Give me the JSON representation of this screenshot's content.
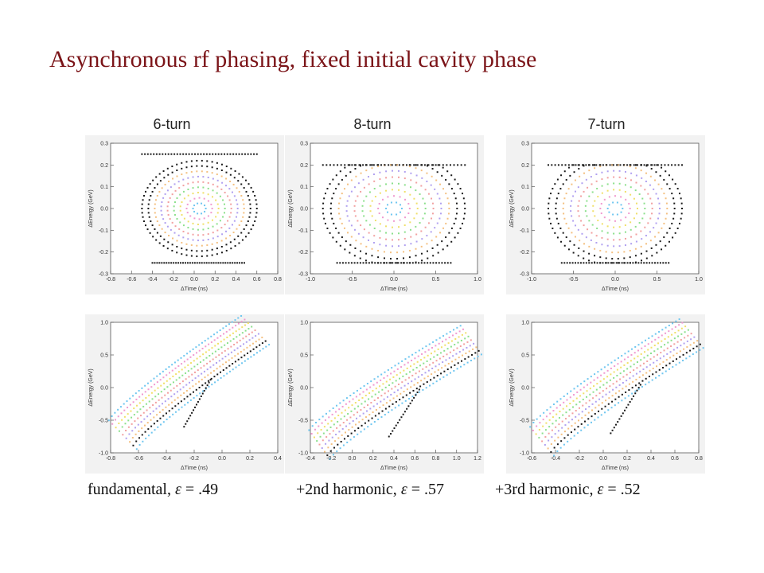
{
  "slide": {
    "title": "Asynchronous rf phasing, fixed initial cavity phase"
  },
  "columns": [
    {
      "title": "6-turn"
    },
    {
      "title": "8-turn"
    },
    {
      "title": "7-turn"
    }
  ],
  "captions": [
    {
      "prefix": "fundamental, ",
      "symbol": "ε",
      "suffix": " = .49"
    },
    {
      "prefix": "+2nd harmonic, ",
      "symbol": "ε",
      "suffix": " = .57"
    },
    {
      "prefix": "+3rd harmonic, ",
      "symbol": "ε",
      "suffix": " = .52"
    }
  ],
  "colors": {
    "title": "#7b1418",
    "rings": [
      "#1a1a1a",
      "#6ec6f0",
      "#f09ad0",
      "#f0e06a",
      "#8ce08c",
      "#f2a0a0",
      "#b0a0f0",
      "#f4c080"
    ]
  },
  "chart_data": [
    {
      "type": "scatter",
      "panel": "top-left",
      "xlabel": "ΔTime (ns)",
      "ylabel": "ΔEnergy (GeV)",
      "xlim": [
        -0.8,
        0.8
      ],
      "ylim": [
        -0.3,
        0.3
      ],
      "xticks": [
        "-0.8",
        "-0.6",
        "-0.4",
        "-0.2",
        "0.0",
        "0.2",
        "0.4",
        "0.6",
        "0.8"
      ],
      "yticks": [
        "0.3",
        "0.2",
        "0.1",
        "0.0",
        "-0.1",
        "-0.2",
        "-0.3"
      ],
      "shape": "rings",
      "center": [
        0.05,
        0.0
      ],
      "rx": 0.55,
      "ry": 0.22,
      "clip": [
        0.25,
        -0.25
      ]
    },
    {
      "type": "scatter",
      "panel": "top-middle",
      "xlabel": "ΔTime (ns)",
      "ylabel": "ΔEnergy (GeV)",
      "xlim": [
        -1.0,
        1.0
      ],
      "ylim": [
        -0.3,
        0.3
      ],
      "xticks": [
        "-1.0",
        "-0.5",
        "0.0",
        "0.5",
        "1.0"
      ],
      "yticks": [
        "0.3",
        "0.2",
        "0.1",
        "0.0",
        "-0.1",
        "-0.2",
        "-0.3"
      ],
      "shape": "rings",
      "center": [
        0.0,
        0.0
      ],
      "rx": 0.85,
      "ry": 0.26,
      "clip": [
        0.2,
        -0.25
      ]
    },
    {
      "type": "scatter",
      "panel": "top-right",
      "xlabel": "ΔTime (ns)",
      "ylabel": "ΔEnergy (GeV)",
      "xlim": [
        -1.0,
        1.0
      ],
      "ylim": [
        -0.3,
        0.3
      ],
      "xticks": [
        "-1.0",
        "-0.5",
        "0.0",
        "0.5",
        "1.0"
      ],
      "yticks": [
        "0.3",
        "0.2",
        "0.1",
        "0.0",
        "-0.1",
        "-0.2",
        "-0.3"
      ],
      "shape": "rings",
      "center": [
        0.0,
        0.0
      ],
      "rx": 0.8,
      "ry": 0.26,
      "clip": [
        0.2,
        -0.25
      ]
    },
    {
      "type": "scatter",
      "panel": "bottom-left",
      "xlabel": "ΔTime (ns)",
      "ylabel": "ΔEnergy (GeV)",
      "xlim": [
        -0.8,
        0.4
      ],
      "ylim": [
        -1.0,
        1.0
      ],
      "xticks": [
        "-0.8",
        "-0.6",
        "-0.4",
        "-0.2",
        "0.0",
        "0.2",
        "0.4"
      ],
      "yticks": [
        "1.0",
        "0.5",
        "0.0",
        "-0.5",
        "-1.0"
      ],
      "shape": "band",
      "from": [
        -0.7,
        -0.75
      ],
      "to": [
        0.25,
        0.85
      ]
    },
    {
      "type": "scatter",
      "panel": "bottom-middle",
      "xlabel": "ΔTime (ns)",
      "ylabel": "ΔEnergy (GeV)",
      "xlim": [
        -0.4,
        1.2
      ],
      "ylim": [
        -1.0,
        1.0
      ],
      "xticks": [
        "-0.4",
        "-0.2",
        "0.0",
        "0.2",
        "0.4",
        "0.6",
        "0.8",
        "1.0",
        "1.2"
      ],
      "yticks": [
        "1.0",
        "0.5",
        "0.0",
        "-0.5",
        "-1.0"
      ],
      "shape": "band",
      "from": [
        -0.3,
        -0.9
      ],
      "to": [
        1.15,
        0.7
      ]
    },
    {
      "type": "scatter",
      "panel": "bottom-right",
      "xlabel": "ΔTime (ns)",
      "ylabel": "ΔEnergy (GeV)",
      "xlim": [
        -0.6,
        0.8
      ],
      "ylim": [
        -1.0,
        1.0
      ],
      "xticks": [
        "-0.6",
        "-0.4",
        "-0.2",
        "0.0",
        "0.2",
        "0.4",
        "0.6",
        "0.8"
      ],
      "yticks": [
        "1.0",
        "0.5",
        "0.0",
        "-0.5",
        "-1.0"
      ],
      "shape": "band",
      "from": [
        -0.5,
        -0.85
      ],
      "to": [
        0.75,
        0.8
      ]
    }
  ]
}
